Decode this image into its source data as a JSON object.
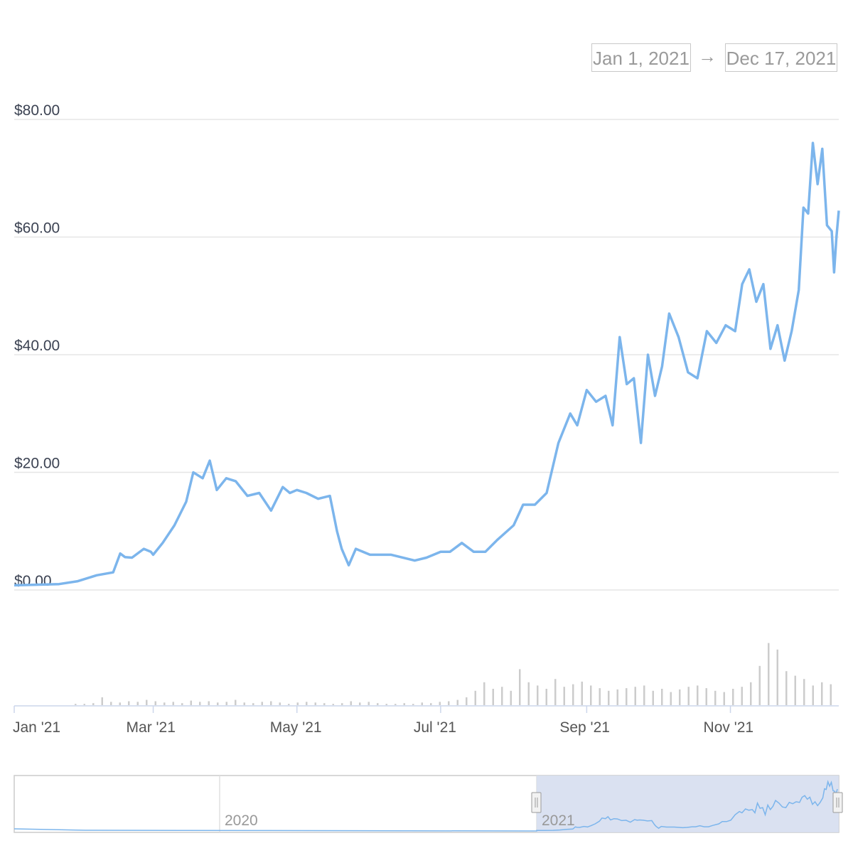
{
  "range_selector": {
    "from": "Jan 1, 2021",
    "arrow": "→",
    "to": "Dec 17, 2021"
  },
  "colors": {
    "line": "#7cb5ec",
    "grid": "#e6e6e6",
    "volume": "#cccccc",
    "navigator_mask": "#d6deef"
  },
  "chart_data": {
    "type": "line",
    "y_axis": {
      "ticks": [
        "$0.00",
        "$20.00",
        "$40.00",
        "$60.00",
        "$80.00"
      ],
      "tick_values": [
        0,
        20,
        40,
        60,
        80
      ],
      "ylim": [
        0,
        80
      ]
    },
    "x_axis": {
      "ticks": [
        "Jan '21",
        "Mar '21",
        "May '21",
        "Jul '21",
        "Sep '21",
        "Nov '21"
      ],
      "tick_dates": [
        "2021-01-01",
        "2021-03-01",
        "2021-05-01",
        "2021-07-01",
        "2021-09-01",
        "2021-11-01"
      ],
      "range": [
        "2021-01-01",
        "2021-12-17"
      ]
    },
    "series": [
      {
        "x": [
          "2021-01-01",
          "2021-01-10",
          "2021-01-20",
          "2021-01-28",
          "2021-02-05",
          "2021-02-12",
          "2021-02-15",
          "2021-02-17",
          "2021-02-20",
          "2021-02-25",
          "2021-02-28",
          "2021-03-01",
          "2021-03-05",
          "2021-03-10",
          "2021-03-15",
          "2021-03-18",
          "2021-03-22",
          "2021-03-25",
          "2021-03-28",
          "2021-04-01",
          "2021-04-05",
          "2021-04-10",
          "2021-04-15",
          "2021-04-20",
          "2021-04-25",
          "2021-04-28",
          "2021-05-01",
          "2021-05-05",
          "2021-05-10",
          "2021-05-15",
          "2021-05-18",
          "2021-05-20",
          "2021-05-23",
          "2021-05-26",
          "2021-06-01",
          "2021-06-10",
          "2021-06-20",
          "2021-06-25",
          "2021-07-01",
          "2021-07-05",
          "2021-07-10",
          "2021-07-15",
          "2021-07-20",
          "2021-07-25",
          "2021-08-01",
          "2021-08-05",
          "2021-08-10",
          "2021-08-15",
          "2021-08-20",
          "2021-08-25",
          "2021-08-28",
          "2021-09-01",
          "2021-09-05",
          "2021-09-09",
          "2021-09-12",
          "2021-09-15",
          "2021-09-18",
          "2021-09-21",
          "2021-09-24",
          "2021-09-27",
          "2021-09-30",
          "2021-10-03",
          "2021-10-06",
          "2021-10-10",
          "2021-10-14",
          "2021-10-18",
          "2021-10-22",
          "2021-10-26",
          "2021-10-30",
          "2021-11-03",
          "2021-11-06",
          "2021-11-09",
          "2021-11-12",
          "2021-11-15",
          "2021-11-18",
          "2021-11-21",
          "2021-11-24",
          "2021-11-27",
          "2021-11-30",
          "2021-12-02",
          "2021-12-04",
          "2021-12-06",
          "2021-12-08",
          "2021-12-10",
          "2021-12-12",
          "2021-12-14",
          "2021-12-15",
          "2021-12-16",
          "2021-12-17"
        ],
        "y": [
          0.8,
          0.9,
          1.0,
          1.5,
          2.5,
          3.0,
          6.2,
          5.6,
          5.5,
          7.0,
          6.5,
          6.0,
          8.0,
          11.0,
          15.0,
          20.0,
          19.0,
          22.0,
          17.0,
          19.0,
          18.5,
          16.0,
          16.5,
          13.5,
          17.5,
          16.5,
          17.0,
          16.5,
          15.5,
          16.0,
          10.0,
          7.0,
          4.2,
          7.0,
          6.0,
          6.0,
          5.0,
          5.5,
          6.5,
          6.5,
          8.0,
          6.5,
          6.5,
          8.5,
          11.0,
          14.5,
          14.5,
          16.5,
          25.0,
          30.0,
          28.0,
          34.0,
          32.0,
          33.0,
          28.0,
          43.0,
          35.0,
          36.0,
          25.0,
          40.0,
          33.0,
          38.0,
          47.0,
          43.0,
          37.0,
          36.0,
          44.0,
          42.0,
          45.0,
          44.0,
          52.0,
          54.5,
          49.0,
          52.0,
          41.0,
          45.0,
          39.0,
          44.0,
          51.0,
          65.0,
          64.0,
          76.0,
          69.0,
          75.0,
          62.0,
          61.0,
          54.0,
          60.0,
          64.5
        ]
      }
    ],
    "volume": {
      "relative_values_note_free": true,
      "relative": [
        0.02,
        0.02,
        0.03,
        0.12,
        0.05,
        0.04,
        0.06,
        0.05,
        0.08,
        0.06,
        0.04,
        0.05,
        0.03,
        0.07,
        0.05,
        0.06,
        0.04,
        0.05,
        0.08,
        0.04,
        0.03,
        0.05,
        0.06,
        0.04,
        0.02,
        0.04,
        0.05,
        0.04,
        0.03,
        0.02,
        0.03,
        0.06,
        0.04,
        0.05,
        0.03,
        0.02,
        0.02,
        0.03,
        0.02,
        0.04,
        0.03,
        0.05,
        0.06,
        0.08,
        0.12,
        0.22,
        0.35,
        0.25,
        0.28,
        0.22,
        0.55,
        0.35,
        0.3,
        0.25,
        0.4,
        0.28,
        0.32,
        0.36,
        0.3,
        0.26,
        0.22,
        0.24,
        0.26,
        0.28,
        0.3,
        0.22,
        0.25,
        0.2,
        0.24,
        0.28,
        0.3,
        0.26,
        0.22,
        0.2,
        0.25,
        0.28,
        0.35,
        0.6,
        0.95,
        0.85,
        0.52,
        0.45,
        0.4,
        0.3,
        0.35,
        0.32
      ]
    },
    "navigator": {
      "labels": [
        "2020",
        "2021"
      ]
    }
  }
}
